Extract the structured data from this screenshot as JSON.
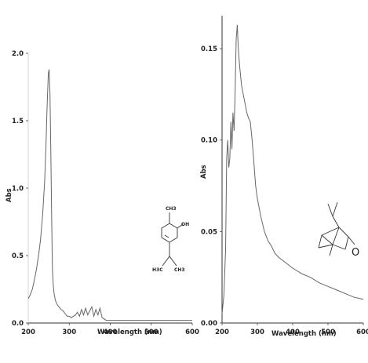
{
  "chart_data": [
    {
      "type": "line",
      "xlabel": "Wavelength (nm)",
      "ylabel": "Abs",
      "xlim": [
        200,
        600
      ],
      "ylim": [
        0,
        2.0
      ],
      "x_ticks": [
        "200",
        "300",
        "400",
        "500",
        "600"
      ],
      "y_ticks": [
        "0.0",
        "0.5",
        "1.0",
        "1.5",
        "2.0"
      ],
      "grid": false,
      "series": [
        {
          "x": [
            200,
            205,
            210,
            215,
            220,
            225,
            230,
            235,
            240,
            243,
            246,
            249,
            251,
            253,
            255,
            257,
            259,
            261,
            263,
            266,
            270,
            275,
            280,
            285,
            290,
            295,
            300,
            305,
            310,
            315,
            320,
            325,
            330,
            335,
            340,
            345,
            350,
            355,
            360,
            365,
            370,
            375,
            380,
            385,
            390,
            400,
            420,
            450,
            500,
            550,
            600
          ],
          "values": [
            0.18,
            0.21,
            0.25,
            0.32,
            0.4,
            0.5,
            0.62,
            0.8,
            1.05,
            1.3,
            1.6,
            1.85,
            1.88,
            1.7,
            1.3,
            0.8,
            0.4,
            0.28,
            0.22,
            0.17,
            0.14,
            0.12,
            0.1,
            0.09,
            0.07,
            0.05,
            0.05,
            0.04,
            0.05,
            0.06,
            0.08,
            0.05,
            0.1,
            0.06,
            0.11,
            0.06,
            0.09,
            0.12,
            0.05,
            0.1,
            0.06,
            0.11,
            0.04,
            0.03,
            0.02,
            0.02,
            0.02,
            0.02,
            0.02,
            0.02,
            0.02
          ]
        }
      ],
      "structure_labels": [
        "CH3",
        "OH",
        "H3C",
        "CH3"
      ]
    },
    {
      "type": "line",
      "xlabel": "Wavelength (nm)",
      "ylabel": "Abs",
      "xlim": [
        200,
        600
      ],
      "ylim": [
        0,
        0.17
      ],
      "x_ticks": [
        "200",
        "300",
        "400",
        "500",
        "600"
      ],
      "y_ticks": [
        "0.00",
        "0.05",
        "0.10",
        "0.15"
      ],
      "grid": false,
      "series": [
        {
          "x": [
            200,
            205,
            210,
            213,
            216,
            219,
            222,
            225,
            228,
            231,
            234,
            237,
            240,
            243,
            246,
            250,
            255,
            260,
            265,
            270,
            275,
            280,
            285,
            290,
            295,
            300,
            310,
            320,
            330,
            340,
            350,
            360,
            380,
            400,
            425,
            450,
            475,
            500,
            525,
            550,
            575,
            600
          ],
          "values": [
            0.005,
            0.015,
            0.04,
            0.09,
            0.1,
            0.085,
            0.09,
            0.11,
            0.095,
            0.115,
            0.105,
            0.125,
            0.155,
            0.163,
            0.15,
            0.14,
            0.13,
            0.125,
            0.12,
            0.115,
            0.112,
            0.11,
            0.1,
            0.088,
            0.075,
            0.068,
            0.058,
            0.05,
            0.045,
            0.042,
            0.038,
            0.036,
            0.033,
            0.03,
            0.027,
            0.025,
            0.022,
            0.02,
            0.018,
            0.016,
            0.014,
            0.013
          ]
        }
      ],
      "structure_labels": [
        "O"
      ]
    }
  ]
}
